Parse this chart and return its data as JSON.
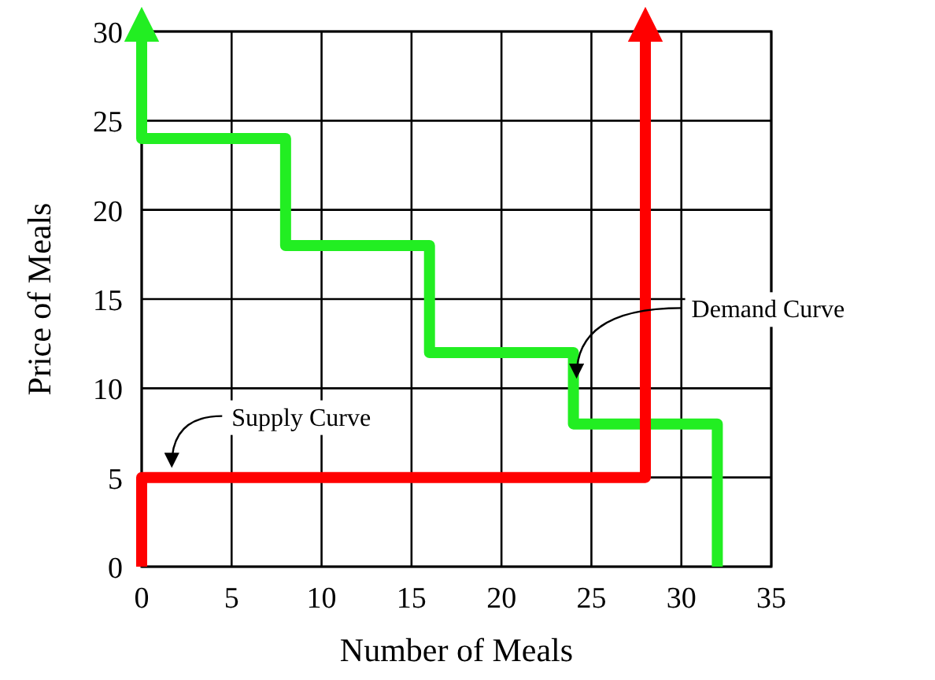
{
  "chart_data": {
    "type": "line",
    "xlabel": "Number of Meals",
    "ylabel": "Price of Meals",
    "xlim": [
      0,
      35
    ],
    "ylim": [
      0,
      30
    ],
    "xticks": [
      0,
      5,
      10,
      15,
      20,
      25,
      30,
      35
    ],
    "yticks": [
      0,
      5,
      10,
      15,
      20,
      25,
      30
    ],
    "grid": true,
    "marker": "none",
    "line_style": "solid",
    "series": [
      {
        "color": "#22ee22",
        "x": [
          0,
          0,
          8,
          8,
          16,
          16,
          24,
          24,
          32,
          32
        ],
        "values": [
          30,
          24,
          24,
          18,
          18,
          12,
          12,
          8,
          8,
          0
        ]
      },
      {
        "color": "#ff0000",
        "x": [
          0,
          0,
          28,
          28
        ],
        "values": [
          0,
          5,
          5,
          30
        ]
      }
    ],
    "annotations": [
      {
        "text": "Supply Curve",
        "x": 1.5,
        "y": 5
      },
      {
        "text": "Demand Curve",
        "x": 24,
        "y": 10
      }
    ]
  }
}
